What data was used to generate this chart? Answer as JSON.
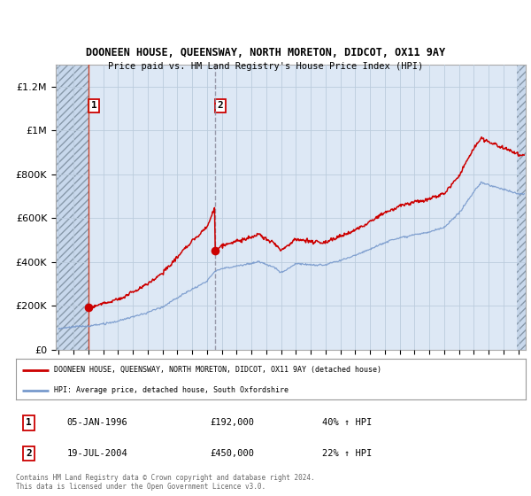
{
  "title": "DOONEEN HOUSE, QUEENSWAY, NORTH MORETON, DIDCOT, OX11 9AY",
  "subtitle": "Price paid vs. HM Land Registry's House Price Index (HPI)",
  "legend_line1": "DOONEEN HOUSE, QUEENSWAY, NORTH MORETON, DIDCOT, OX11 9AY (detached house)",
  "legend_line2": "HPI: Average price, detached house, South Oxfordshire",
  "transaction1_date": "05-JAN-1996",
  "transaction1_price": "£192,000",
  "transaction1_hpi": "40% ↑ HPI",
  "transaction2_date": "19-JUL-2004",
  "transaction2_price": "£450,000",
  "transaction2_hpi": "22% ↑ HPI",
  "copyright": "Contains HM Land Registry data © Crown copyright and database right 2024.\nThis data is licensed under the Open Government Licence v3.0.",
  "background_color": "#dde8f5",
  "hatch_region_color": "#c8d8ec",
  "grid_color": "#bbccdd",
  "red_line_color": "#cc0000",
  "blue_line_color": "#7799cc",
  "vline1_color": "#cc2200",
  "vline2_color": "#888899",
  "ylim": [
    0,
    1300000
  ],
  "xlim_start": 1993.8,
  "xlim_end": 2025.5,
  "yticks": [
    0,
    200000,
    400000,
    600000,
    800000,
    1000000,
    1200000
  ],
  "ytick_labels": [
    "£0",
    "£200K",
    "£400K",
    "£600K",
    "£800K",
    "£1M",
    "£1.2M"
  ],
  "xticks": [
    1994,
    1995,
    1996,
    1997,
    1998,
    1999,
    2000,
    2001,
    2002,
    2003,
    2004,
    2005,
    2006,
    2007,
    2008,
    2009,
    2010,
    2011,
    2012,
    2013,
    2014,
    2015,
    2016,
    2017,
    2018,
    2019,
    2020,
    2021,
    2022,
    2023,
    2024,
    2025
  ],
  "transaction1_x": 1996.03,
  "transaction1_y": 192000,
  "transaction2_x": 2004.54,
  "transaction2_y": 450000,
  "hatch_end_x": 2024.9
}
